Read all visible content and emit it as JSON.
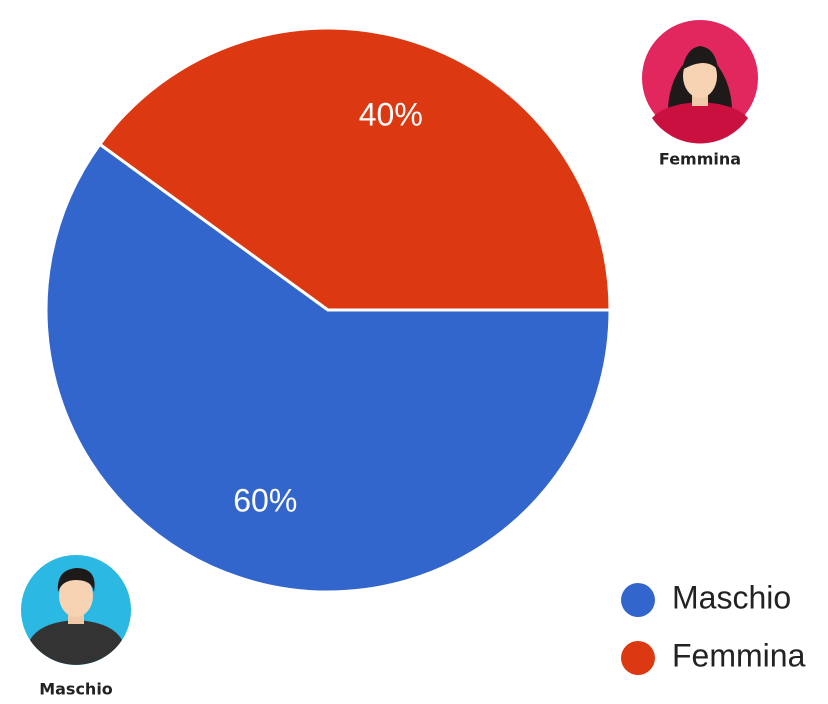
{
  "chart_data": {
    "type": "pie",
    "categories": [
      "Maschio",
      "Femmina"
    ],
    "values": [
      60,
      40
    ],
    "value_labels": [
      "60%",
      "40%"
    ],
    "colors": [
      "#3366cc",
      "#dc3912"
    ],
    "legend": "bottom-right"
  }
}
